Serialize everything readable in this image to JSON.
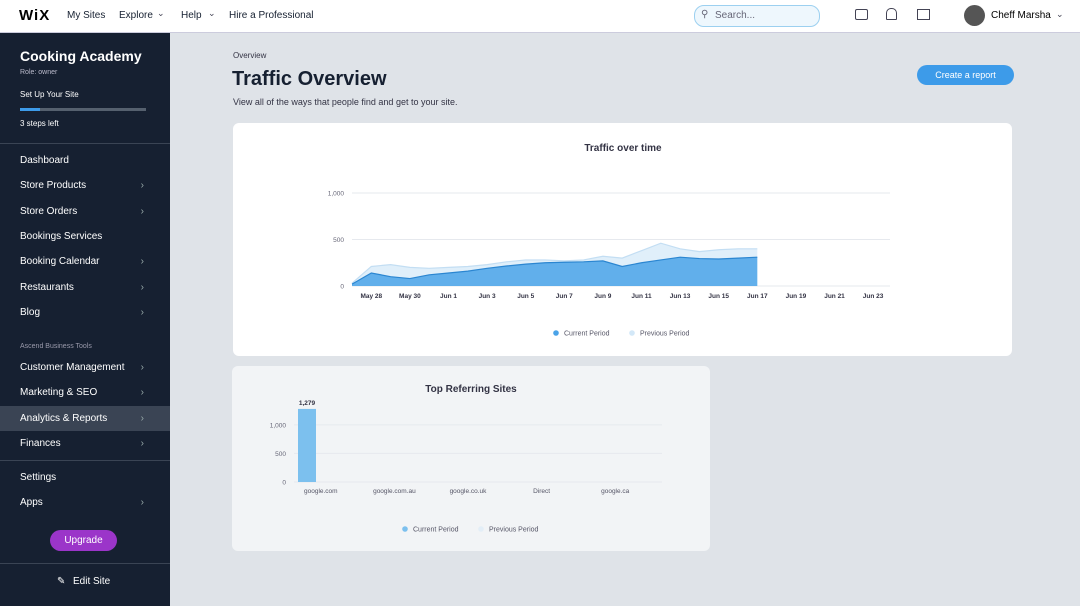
{
  "topbar": {
    "logo": "WiX",
    "nav": [
      "My Sites",
      "Explore",
      "Help",
      "Hire a Professional"
    ],
    "search": "Search...",
    "user": "Cheff Marsha"
  },
  "sidebar": {
    "site_name": "Cooking Academy",
    "role": "Role: owner",
    "setup": "Set Up Your Site",
    "steps": "3 steps left",
    "menu": [
      {
        "label": "Dashboard",
        "has_submenu": false
      },
      {
        "label": "Store Products",
        "has_submenu": true
      },
      {
        "label": "Store Orders",
        "has_submenu": true
      },
      {
        "label": "Bookings Services",
        "has_submenu": false
      },
      {
        "label": "Booking Calendar",
        "has_submenu": true
      },
      {
        "label": "Restaurants",
        "has_submenu": true
      },
      {
        "label": "Blog",
        "has_submenu": true
      }
    ],
    "section": "Ascend Business Tools",
    "menu2": [
      {
        "label": "Customer Management",
        "has_submenu": true
      },
      {
        "label": "Marketing & SEO",
        "has_submenu": true
      },
      {
        "label": "Analytics & Reports",
        "has_submenu": true,
        "active": true
      },
      {
        "label": "Finances",
        "has_submenu": true
      }
    ],
    "menu3": [
      {
        "label": "Settings",
        "has_submenu": false
      },
      {
        "label": "Apps",
        "has_submenu": true
      }
    ],
    "upgrade": "Upgrade",
    "edit": "Edit Site"
  },
  "page": {
    "breadcrumb": "Overview",
    "title": "Traffic Overview",
    "subtitle": "View all of the ways that people find and get to your site.",
    "button": "Create a report"
  },
  "chart_data": [
    {
      "type": "area",
      "title": "Traffic over time",
      "categories": [
        null,
        "May 28",
        null,
        "May 30",
        null,
        "Jun 1",
        null,
        "Jun 3",
        null,
        "Jun 5",
        null,
        "Jun 7",
        null,
        "Jun 9",
        null,
        "Jun 11",
        null,
        "Jun 13",
        null,
        "Jun 15",
        null,
        "Jun 17",
        null,
        "Jun 19",
        null,
        "Jun 21",
        null,
        "Jun 23"
      ],
      "series": [
        {
          "name": "Current Period",
          "color": "#4aa3e8",
          "values": [
            20,
            140,
            100,
            80,
            120,
            140,
            160,
            190,
            215,
            235,
            250,
            255,
            260,
            270,
            210,
            250,
            280,
            310,
            295,
            290,
            300,
            310,
            null,
            null,
            null,
            null,
            null,
            null
          ]
        },
        {
          "name": "Previous Period",
          "color": "#d3e8f8",
          "values": [
            30,
            210,
            230,
            200,
            190,
            200,
            210,
            230,
            260,
            280,
            280,
            270,
            280,
            320,
            300,
            380,
            460,
            400,
            370,
            390,
            400,
            400,
            null,
            null,
            null,
            null,
            null,
            null
          ]
        }
      ],
      "ylim": [
        0,
        1000
      ],
      "yticks": [
        0,
        500,
        {
          "value": 1000,
          "label": "1,000"
        }
      ],
      "grid": true
    },
    {
      "type": "bar",
      "title": "Top Referring Sites",
      "categories": [
        "google.com",
        "google.com.au",
        "google.co.uk",
        "Direct",
        "google.ca"
      ],
      "series": [
        {
          "name": "Current Period",
          "color": "#7cc0ee",
          "values": [
            1279,
            0,
            0,
            0,
            0
          ],
          "value_labels": [
            "1,279",
            null,
            null,
            null,
            null
          ]
        },
        {
          "name": "Previous Period",
          "color": "#e3eef7",
          "values": [
            0,
            0,
            0,
            0,
            0
          ]
        }
      ],
      "ylim": [
        0,
        1400
      ],
      "yticks": [
        0,
        500,
        {
          "value": 1000,
          "label": "1,000"
        }
      ],
      "grid": true
    }
  ]
}
